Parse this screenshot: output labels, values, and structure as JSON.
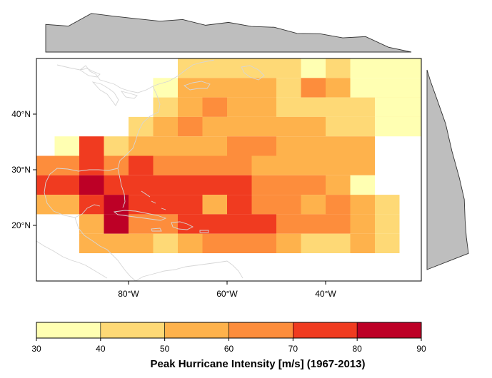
{
  "chart_data": {
    "type": "heatmap",
    "title": "",
    "xlabel": "",
    "ylabel": "",
    "xlim": [
      -100,
      -1
    ],
    "ylim": [
      10,
      50
    ],
    "cell_size_deg": 5,
    "x_ticks": [
      {
        "value": -80,
        "label": "80°W"
      },
      {
        "value": -60,
        "label": "60°W"
      },
      {
        "value": -40,
        "label": "40°W"
      }
    ],
    "y_ticks": [
      {
        "value": 20,
        "label": "20°N"
      },
      {
        "value": 30,
        "label": "30°N"
      },
      {
        "value": 40,
        "label": "40°N"
      }
    ],
    "colorbar": {
      "title": "Peak Hurricane Intensity [m/s] (1967-2013)",
      "bins": [
        30,
        40,
        50,
        60,
        70,
        80,
        90
      ],
      "tick_labels": [
        "30",
        "40",
        "50",
        "60",
        "70",
        "80",
        "90"
      ],
      "colors": [
        "#FFFFB2",
        "#FED976",
        "#FEB24C",
        "#FD8D3C",
        "#F03B20",
        "#BD0026"
      ]
    },
    "cells_note": "Each row is [latitude band lower edge, [[lon_start, lon_end, intensity_class_index], ...]]; class index i means value in bins[i]..bins[i+1]",
    "cells": [
      [
        45,
        [
          [
            -70,
            -60,
            1
          ],
          [
            -60,
            -55,
            1
          ],
          [
            -55,
            -50,
            1
          ],
          [
            -50,
            -45,
            1
          ],
          [
            -45,
            -40,
            0
          ],
          [
            -40,
            -35,
            1
          ],
          [
            -35,
            -20,
            0
          ]
        ]
      ],
      [
        40,
        [
          [
            -75,
            -70,
            0
          ],
          [
            -70,
            -55,
            2
          ],
          [
            -55,
            -50,
            2
          ],
          [
            -50,
            -45,
            1
          ],
          [
            -45,
            -40,
            3
          ],
          [
            -40,
            -35,
            2
          ],
          [
            -35,
            -20,
            0
          ]
        ]
      ],
      [
        35,
        [
          [
            -75,
            -70,
            1
          ],
          [
            -70,
            -65,
            2
          ],
          [
            -65,
            -60,
            3
          ],
          [
            -60,
            -50,
            2
          ],
          [
            -50,
            -45,
            1
          ],
          [
            -45,
            -20,
            1
          ],
          [
            -30,
            -20,
            0
          ]
        ]
      ],
      [
        30,
        [
          [
            -80,
            -75,
            1
          ],
          [
            -75,
            -70,
            2
          ],
          [
            -70,
            -65,
            3
          ],
          [
            -65,
            -55,
            2
          ],
          [
            -55,
            -50,
            2
          ],
          [
            -50,
            -40,
            2
          ],
          [
            -40,
            -30,
            1
          ],
          [
            -30,
            -20,
            0
          ]
        ]
      ],
      [
        25,
        [
          [
            -95,
            -90,
            0
          ],
          [
            -90,
            -85,
            4
          ],
          [
            -85,
            -80,
            1
          ],
          [
            -80,
            -75,
            2
          ],
          [
            -75,
            -60,
            2
          ],
          [
            -60,
            -55,
            3
          ],
          [
            -55,
            -50,
            3
          ],
          [
            -50,
            -40,
            2
          ],
          [
            -40,
            -30,
            2
          ]
        ]
      ],
      [
        20,
        [
          [
            -100,
            -90,
            3
          ],
          [
            -90,
            -85,
            4
          ],
          [
            -85,
            -80,
            3
          ],
          [
            -80,
            -75,
            4
          ],
          [
            -75,
            -60,
            3
          ],
          [
            -60,
            -55,
            3
          ],
          [
            -55,
            -50,
            2
          ],
          [
            -50,
            -45,
            2
          ],
          [
            -45,
            -35,
            2
          ],
          [
            -35,
            -30,
            2
          ]
        ]
      ],
      [
        15,
        [
          [
            -100,
            -90,
            4
          ],
          [
            -90,
            -85,
            5
          ],
          [
            -85,
            -80,
            4
          ],
          [
            -80,
            -55,
            4
          ],
          [
            -55,
            -50,
            3
          ],
          [
            -50,
            -40,
            3
          ],
          [
            -40,
            -35,
            2
          ],
          [
            -35,
            -30,
            0
          ]
        ]
      ],
      [
        10,
        [
          [
            -100,
            -95,
            2
          ],
          [
            -95,
            -90,
            2
          ],
          [
            -90,
            -85,
            4
          ],
          [
            -85,
            -80,
            5
          ],
          [
            -80,
            -75,
            4
          ],
          [
            -75,
            -70,
            4
          ],
          [
            -70,
            -65,
            4
          ],
          [
            -65,
            -60,
            2
          ],
          [
            -60,
            -55,
            4
          ],
          [
            -55,
            -50,
            3
          ],
          [
            -50,
            -45,
            3
          ],
          [
            -45,
            -40,
            2
          ],
          [
            -40,
            -35,
            3
          ],
          [
            -35,
            -30,
            2
          ],
          [
            -30,
            -25,
            1
          ]
        ]
      ],
      [
        5,
        [
          [
            -90,
            -85,
            2
          ],
          [
            -85,
            -80,
            5
          ],
          [
            -80,
            -75,
            3
          ],
          [
            -75,
            -70,
            3
          ],
          [
            -70,
            -65,
            4
          ],
          [
            -65,
            -60,
            4
          ],
          [
            -60,
            -55,
            4
          ],
          [
            -55,
            -50,
            4
          ],
          [
            -50,
            -45,
            3
          ],
          [
            -45,
            -40,
            3
          ],
          [
            -40,
            -35,
            3
          ],
          [
            -35,
            -30,
            2
          ],
          [
            -30,
            -25,
            1
          ]
        ]
      ],
      [
        0,
        [
          [
            -90,
            -85,
            2
          ],
          [
            -85,
            -80,
            2
          ],
          [
            -80,
            -75,
            2
          ],
          [
            -75,
            -70,
            1
          ],
          [
            -70,
            -65,
            2
          ],
          [
            -65,
            -60,
            3
          ],
          [
            -60,
            -55,
            3
          ],
          [
            -55,
            -50,
            3
          ],
          [
            -50,
            -45,
            2
          ],
          [
            -45,
            -40,
            1
          ],
          [
            -40,
            -35,
            1
          ],
          [
            -35,
            -30,
            2
          ],
          [
            -30,
            -25,
            1
          ]
        ]
      ]
    ],
    "top_marginal": {
      "description": "Longitudinal density profile",
      "x": [
        -100,
        -95,
        -90,
        -85,
        -80,
        -75,
        -70,
        -65,
        -60,
        -55,
        -50,
        -45,
        -40,
        -35,
        -30,
        -25,
        -20
      ],
      "y": [
        0.68,
        0.64,
        0.95,
        0.88,
        0.82,
        0.76,
        0.8,
        0.66,
        0.73,
        0.63,
        0.61,
        0.46,
        0.45,
        0.35,
        0.38,
        0.12,
        0.0
      ]
    },
    "right_marginal": {
      "description": "Latitudinal density profile",
      "y": [
        50,
        48,
        45,
        40,
        35,
        30,
        26,
        22,
        19,
        16,
        13
      ],
      "x": [
        0.0,
        0.08,
        0.22,
        0.45,
        0.6,
        0.78,
        0.9,
        0.92,
        0.95,
        1.0,
        0.0
      ]
    }
  }
}
